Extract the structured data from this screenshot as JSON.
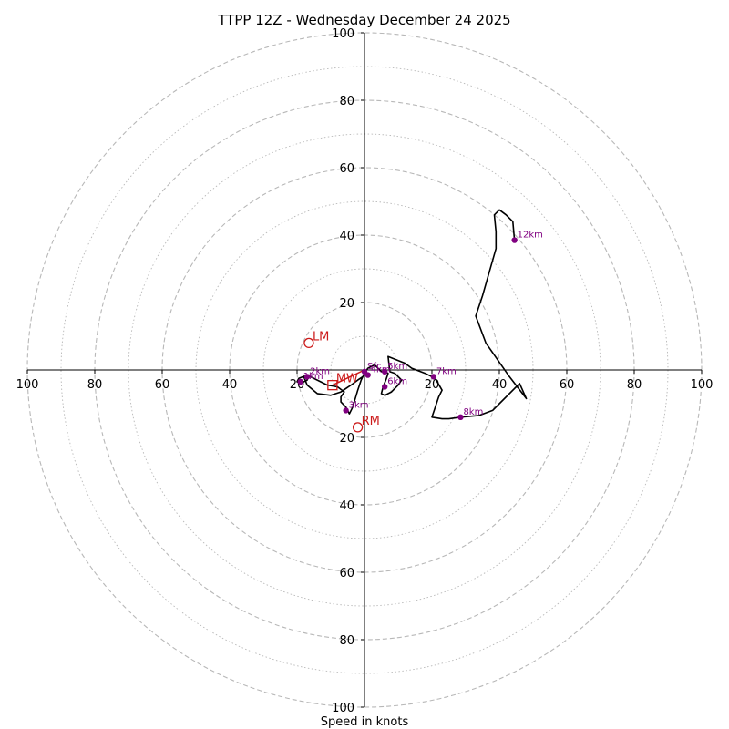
{
  "chart_data": {
    "type": "hodograph",
    "title": "TTPP 12Z - Wednesday December 24 2025",
    "xlabel": "Speed in knots",
    "ring_max": 100,
    "ring_major_step": 20,
    "ring_minor_step": 10,
    "axis_tick_values": [
      100,
      80,
      60,
      40,
      20
    ],
    "trace": [
      {
        "u": -0.5,
        "v": -2
      },
      {
        "u": -2,
        "v": -3
      },
      {
        "u": -4,
        "v": -4.5
      },
      {
        "u": -7,
        "v": -6.5
      },
      {
        "u": -10,
        "v": -7.5
      },
      {
        "u": -14,
        "v": -7
      },
      {
        "u": -17,
        "v": -4.5
      },
      {
        "u": -18,
        "v": -2
      },
      {
        "u": -16.5,
        "v": -1.5
      },
      {
        "u": -17,
        "v": -3
      },
      {
        "u": -19,
        "v": -4
      },
      {
        "u": -20,
        "v": -3.5
      },
      {
        "u": -19.5,
        "v": -2.5
      },
      {
        "u": -17,
        "v": -1.5
      },
      {
        "u": -14,
        "v": -3
      },
      {
        "u": -11,
        "v": -4.5
      },
      {
        "u": -8,
        "v": -5
      },
      {
        "u": -6,
        "v": -6.5
      },
      {
        "u": -7,
        "v": -8
      },
      {
        "u": -7,
        "v": -9.5
      },
      {
        "u": -5.5,
        "v": -11
      },
      {
        "u": -4.5,
        "v": -13
      },
      {
        "u": -3.5,
        "v": -11
      },
      {
        "u": -2,
        "v": -6
      },
      {
        "u": -1,
        "v": -3
      },
      {
        "u": 0,
        "v": -1
      },
      {
        "u": 1,
        "v": 0.5
      },
      {
        "u": 3,
        "v": 1.5
      },
      {
        "u": 4,
        "v": 0.5
      },
      {
        "u": 5,
        "v": -0.5
      },
      {
        "u": 6,
        "v": -0.5
      },
      {
        "u": 7,
        "v": -1
      },
      {
        "u": 6.5,
        "v": -2.5
      },
      {
        "u": 5.5,
        "v": -5
      },
      {
        "u": 5,
        "v": -7
      },
      {
        "u": 6,
        "v": -7.5
      },
      {
        "u": 8,
        "v": -6.5
      },
      {
        "u": 10,
        "v": -4.5
      },
      {
        "u": 11,
        "v": -3
      },
      {
        "u": 9,
        "v": -1
      },
      {
        "u": 7.5,
        "v": -0.5
      },
      {
        "u": 7,
        "v": 4
      },
      {
        "u": 12,
        "v": 2
      },
      {
        "u": 14,
        "v": 0.5
      },
      {
        "u": 18,
        "v": -1
      },
      {
        "u": 21,
        "v": -2.5
      },
      {
        "u": 23,
        "v": -6
      },
      {
        "u": 22,
        "v": -8
      },
      {
        "u": 20,
        "v": -14
      },
      {
        "u": 23,
        "v": -14.5
      },
      {
        "u": 25,
        "v": -14.5
      },
      {
        "u": 28.5,
        "v": -14
      },
      {
        "u": 34,
        "v": -13.5
      },
      {
        "u": 38,
        "v": -12
      },
      {
        "u": 40,
        "v": -10
      },
      {
        "u": 46,
        "v": -4
      },
      {
        "u": 48,
        "v": -8.5
      },
      {
        "u": 43,
        "v": -2
      },
      {
        "u": 36,
        "v": 8
      },
      {
        "u": 33,
        "v": 16
      },
      {
        "u": 35,
        "v": 22
      },
      {
        "u": 37,
        "v": 29
      },
      {
        "u": 39,
        "v": 36
      },
      {
        "u": 39,
        "v": 41
      },
      {
        "u": 38.5,
        "v": 46
      },
      {
        "u": 40,
        "v": 47.5
      },
      {
        "u": 42,
        "v": 46
      },
      {
        "u": 44,
        "v": 44
      },
      {
        "u": 44.5,
        "v": 38.5
      }
    ],
    "height_markers": [
      {
        "label": "Sfc",
        "u": 0,
        "v": -0.5
      },
      {
        "label": "1km",
        "u": -19,
        "v": -3.5
      },
      {
        "label": "2km",
        "u": -17,
        "v": -2
      },
      {
        "label": "3km",
        "u": -5.5,
        "v": -12
      },
      {
        "label": "4km",
        "u": 1,
        "v": -1.5
      },
      {
        "label": "5km",
        "u": 6,
        "v": -0.5
      },
      {
        "label": "6km",
        "u": 6,
        "v": -5
      },
      {
        "label": "7km",
        "u": 20.5,
        "v": -2
      },
      {
        "label": "8km",
        "u": 28.5,
        "v": -14
      },
      {
        "label": "12km",
        "u": 44.5,
        "v": 38.5
      }
    ],
    "storm_motion": {
      "LM": {
        "label": "LM",
        "u": -16.5,
        "v": 8
      },
      "MW": {
        "label": "MW",
        "u": -9.5,
        "v": -4.5
      },
      "RM": {
        "label": "RM",
        "u": -2,
        "v": -17
      }
    },
    "colors": {
      "trace": "#000000",
      "height": "#800080",
      "height_text": "#800080",
      "motion": "#cc1a1a",
      "grid": "#b8b8b8",
      "axes": "#000000"
    }
  }
}
